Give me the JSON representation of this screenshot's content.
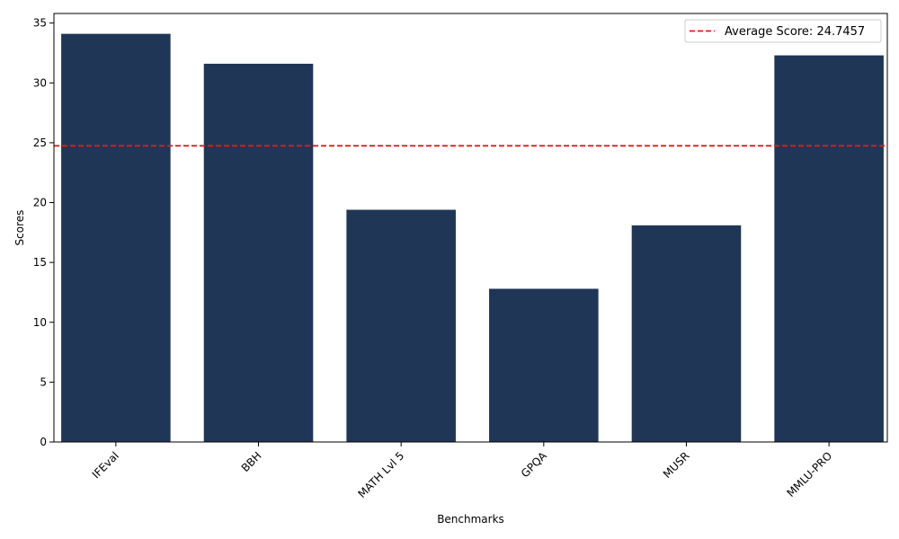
{
  "chart_data": {
    "type": "bar",
    "title": "",
    "xlabel": "Benchmarks",
    "ylabel": "Scores",
    "categories": [
      "IFEval",
      "BBH",
      "MATH Lvl 5",
      "GPQA",
      "MUSR",
      "MMLU-PRO"
    ],
    "values": [
      34.1,
      31.6,
      19.4,
      12.8,
      18.1,
      32.3
    ],
    "ylim": [
      0,
      35.8
    ],
    "yticks": [
      0,
      5,
      10,
      15,
      20,
      25,
      30,
      35
    ],
    "bar_color": "#1f3657",
    "reference_line": {
      "value": 24.7457,
      "label": "Average Score: 24.7457",
      "color": "#e41a1c",
      "style": "dashed"
    },
    "legend_position": "top-right",
    "grid": false
  }
}
